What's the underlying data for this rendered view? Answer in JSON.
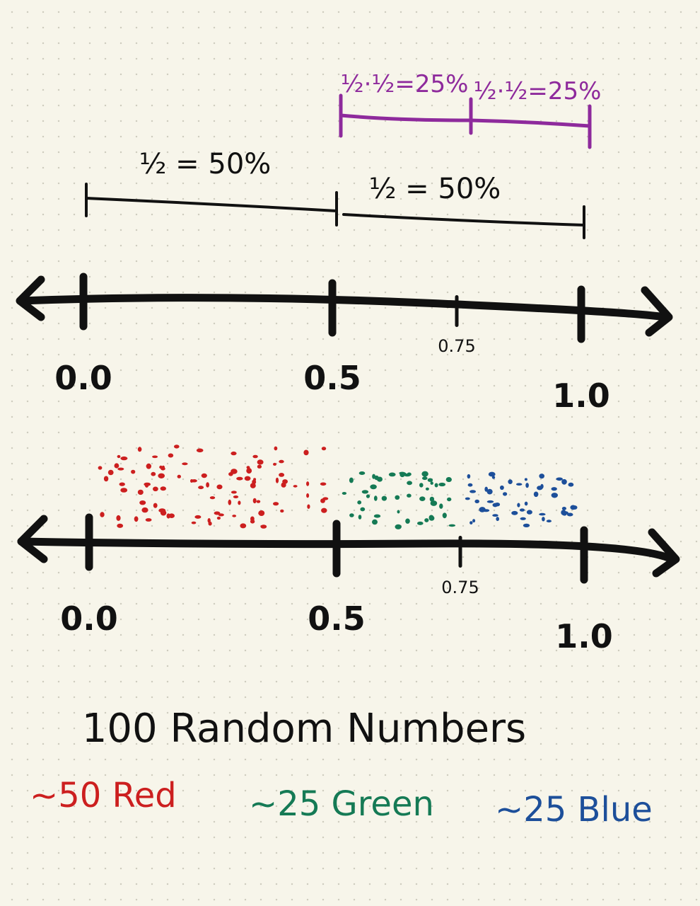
{
  "diagram_top": {
    "purple_brackets": [
      {
        "label": "½·½=25%"
      },
      {
        "label": "½·½=25%"
      }
    ],
    "black_brackets": [
      {
        "label": "½ = 50%"
      },
      {
        "label": "½ = 50%"
      }
    ],
    "tick_labels": [
      {
        "value": 0.0,
        "text": "0.0",
        "size": "major"
      },
      {
        "value": 0.5,
        "text": "0.5",
        "size": "major"
      },
      {
        "value": 0.75,
        "text": "0.75",
        "size": "minor"
      },
      {
        "value": 1.0,
        "text": "1.0",
        "size": "major"
      }
    ]
  },
  "diagram_bottom": {
    "tick_labels": [
      {
        "value": 0.0,
        "text": "0.0",
        "size": "major"
      },
      {
        "value": 0.5,
        "text": "0.5",
        "size": "major"
      },
      {
        "value": 0.75,
        "text": "0.75",
        "size": "minor"
      },
      {
        "value": 1.0,
        "text": "1.0",
        "size": "major"
      }
    ],
    "dot_groups": [
      {
        "name": "red",
        "color": "#cc1f1f",
        "from": 0.0,
        "to": 0.5,
        "count": 50
      },
      {
        "name": "green",
        "color": "#157a55",
        "from": 0.5,
        "to": 0.75,
        "count": 25
      },
      {
        "name": "blue",
        "color": "#1d4f9a",
        "from": 0.75,
        "to": 1.0,
        "count": 25
      }
    ]
  },
  "caption": "100 Random Numbers",
  "legend": [
    {
      "text": "~50 Red",
      "color": "#cc1f1f"
    },
    {
      "text": "~25 Green",
      "color": "#157a55"
    },
    {
      "text": "~25 Blue",
      "color": "#1d4f9a"
    }
  ]
}
